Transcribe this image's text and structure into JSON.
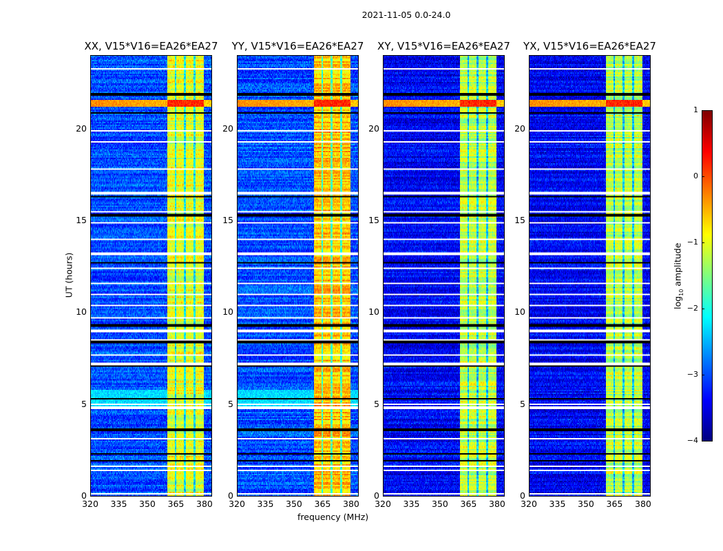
{
  "chart_data": {
    "type": "heatmap",
    "suptitle": "2021-11-05 0.0-24.0",
    "xlabel": "frequency (MHz)",
    "ylabel": "UT (hours)",
    "xlim": [
      320,
      384
    ],
    "ylim": [
      0,
      24
    ],
    "xticks": [
      320,
      335,
      350,
      365,
      380
    ],
    "yticks": [
      0,
      5,
      10,
      15,
      20
    ],
    "colormap": "jet",
    "colorbar": {
      "label_main": "log",
      "label_sub": "10",
      "label_rest": " amplitude",
      "range": [
        -4,
        1
      ],
      "ticks": [
        1,
        0,
        -1,
        -2,
        -3,
        -4
      ],
      "tick_labels": [
        "1",
        "0",
        "−1",
        "−2",
        "−3",
        "−4"
      ]
    },
    "panels": [
      {
        "title": "XX, V15*V16=EA26*EA27",
        "background_log_amp": -3.0,
        "band_log_amp": -1.0
      },
      {
        "title": "YY, V15*V16=EA26*EA27",
        "background_log_amp": -3.0,
        "band_log_amp": -0.6
      },
      {
        "title": "XY, V15*V16=EA26*EA27",
        "background_log_amp": -3.4,
        "band_log_amp": -1.2
      },
      {
        "title": "YX, V15*V16=EA26*EA27",
        "background_log_amp": -3.4,
        "band_log_amp": -1.2
      }
    ],
    "bright_band_mhz": [
      360.5,
      380
    ],
    "band_gaps_mhz": [
      365,
      370,
      375
    ],
    "rfi_hours": [
      21.2,
      21.6
    ],
    "flagged_hours_white": [
      23.3,
      19.9,
      19.3,
      17.8,
      16.5,
      15.5,
      14.9,
      14.0,
      13.2,
      12.4,
      11.6,
      11.0,
      10.4,
      9.7,
      9.0,
      8.5,
      7.7,
      7.2,
      5.0,
      4.8,
      3.1,
      1.6,
      1.4,
      0.1
    ],
    "dark_hours_black": [
      21.9,
      20.9,
      16.3,
      15.3,
      12.7,
      9.3,
      8.4,
      7.1,
      5.3,
      3.6,
      2.3,
      1.9
    ]
  }
}
